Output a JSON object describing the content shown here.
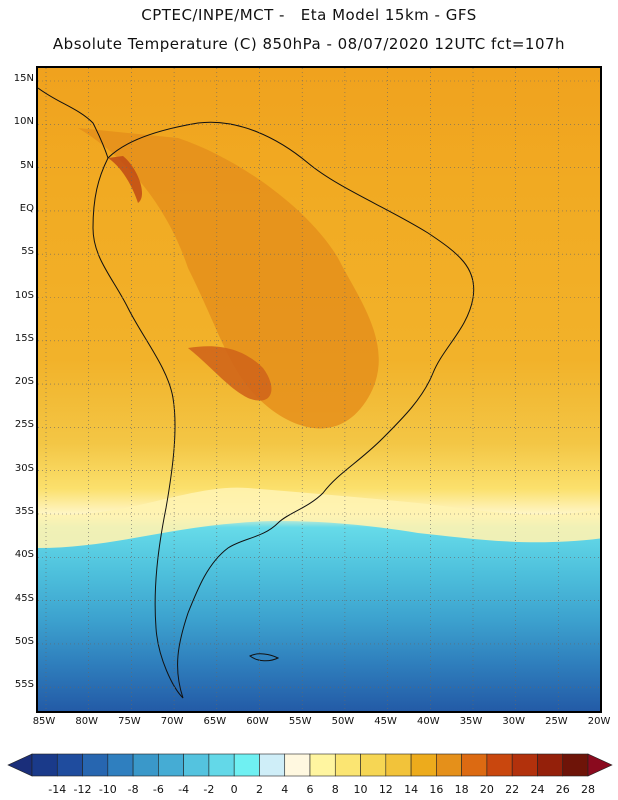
{
  "header": {
    "line1": "CPTEC/INPE/MCT -   Eta Model 15km - GFS",
    "line2": "Absolute Temperature (C) 850hPa - 08/07/2020 12UTC fct=107h"
  },
  "map": {
    "lat_labels": [
      "15N",
      "10N",
      "5N",
      "EQ",
      "5S",
      "10S",
      "15S",
      "20S",
      "25S",
      "30S",
      "35S",
      "40S",
      "45S",
      "50S",
      "55S"
    ],
    "lon_labels": [
      "85W",
      "80W",
      "75W",
      "70W",
      "65W",
      "60W",
      "55W",
      "50W",
      "45W",
      "40W",
      "35W",
      "30W",
      "25W",
      "20W"
    ]
  },
  "colorbar": {
    "labels": [
      "-14",
      "-12",
      "-10",
      "-8",
      "-6",
      "-4",
      "-2",
      "0",
      "2",
      "4",
      "6",
      "8",
      "10",
      "12",
      "14",
      "16",
      "18",
      "20",
      "22",
      "24",
      "26",
      "28"
    ],
    "colors": [
      "#1a3a8a",
      "#1f4c9e",
      "#2766b0",
      "#2f7fbf",
      "#3a98c9",
      "#45acd4",
      "#54c3df",
      "#63d8e8",
      "#6ff0f2",
      "#cfeef8",
      "#fff8e0",
      "#fff5a0",
      "#fbe572",
      "#f6d654",
      "#f2c33a",
      "#edab1c",
      "#e5901a",
      "#dc6a12",
      "#c9470e",
      "#b2310c",
      "#94200a",
      "#6e1408"
    ],
    "under_color": "#1a2e7a",
    "over_color": "#8a0a1e"
  }
}
